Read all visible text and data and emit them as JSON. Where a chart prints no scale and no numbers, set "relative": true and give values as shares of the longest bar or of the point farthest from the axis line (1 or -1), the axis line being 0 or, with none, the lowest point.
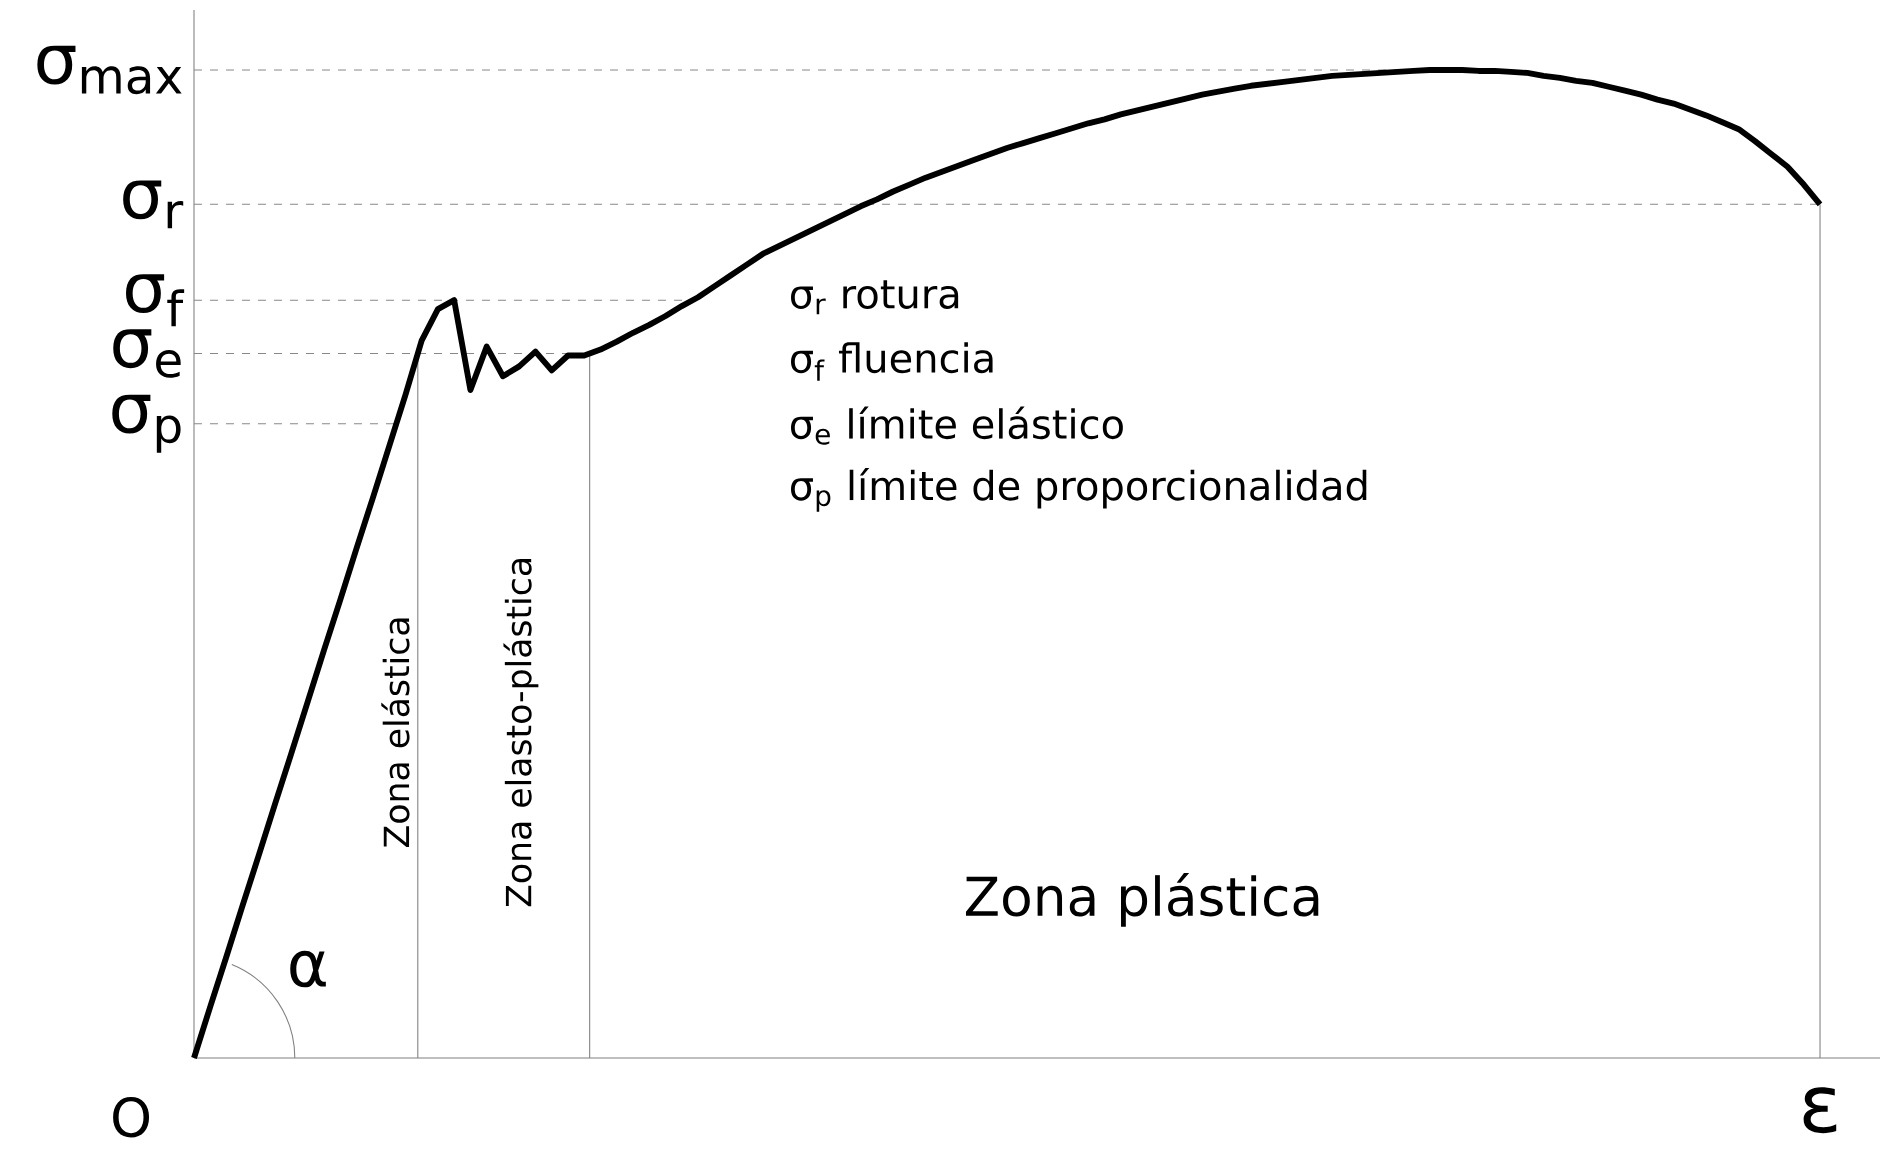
{
  "chart_data": {
    "type": "line",
    "relative": true,
    "xlabel": "ε",
    "color": "#000000",
    "line_style": "solid",
    "marker": "none",
    "categories": [
      null,
      null,
      null,
      null,
      null,
      null,
      null,
      null,
      null,
      null,
      null,
      null,
      null,
      null,
      null,
      null,
      null,
      null,
      null,
      null,
      null,
      null,
      null,
      null,
      null,
      null,
      null,
      null,
      null,
      null,
      null,
      null,
      null,
      null,
      null,
      null,
      null,
      null,
      null,
      null,
      null,
      null,
      null,
      null,
      null,
      null,
      null,
      null,
      null,
      null,
      null,
      null,
      null,
      null,
      null,
      null,
      null,
      null,
      null,
      null,
      null,
      null,
      null,
      null,
      null,
      null,
      null,
      null,
      null,
      null,
      null,
      null,
      null,
      null,
      null,
      null,
      null,
      null,
      null,
      null,
      null,
      null,
      null,
      null,
      null,
      null,
      null,
      null,
      null,
      null,
      null,
      null,
      null,
      null,
      null,
      null,
      null,
      null,
      null,
      null,
      null
    ],
    "values": [
      0,
      0.052,
      0.103,
      0.155,
      0.206,
      0.258,
      0.309,
      0.361,
      0.413,
      0.464,
      0.516,
      0.567,
      0.619,
      0.671,
      0.726,
      0.758,
      0.767,
      0.676,
      0.72,
      0.69,
      0.7,
      0.715,
      0.696,
      0.711,
      0.711,
      0.717,
      0.725,
      0.734,
      0.742,
      0.751,
      0.761,
      0.77,
      0.781,
      0.792,
      0.803,
      0.814,
      0.822,
      0.83,
      0.838,
      0.846,
      0.854,
      0.862,
      0.869,
      0.877,
      0.884,
      0.891,
      0.897,
      0.903,
      0.909,
      0.915,
      0.921,
      0.926,
      0.931,
      0.936,
      0.941,
      0.946,
      0.95,
      0.955,
      0.959,
      0.963,
      0.967,
      0.971,
      0.975,
      0.978,
      0.981,
      0.984,
      0.986,
      0.988,
      0.99,
      0.992,
      0.994,
      0.995,
      0.996,
      0.997,
      0.998,
      0.999,
      1,
      1,
      1,
      0.999,
      0.999,
      0.998,
      0.997,
      0.994,
      0.992,
      0.989,
      0.987,
      0.983,
      0.979,
      0.975,
      0.97,
      0.966,
      0.96,
      0.954,
      0.947,
      0.94,
      0.928,
      0.915,
      0.902,
      0.884,
      0.864
    ],
    "ref_lines": [
      {
        "axis": "y",
        "value": 1,
        "label": "σ$_{max}$",
        "color": "#888888",
        "line_style": "dashed"
      },
      {
        "axis": "y",
        "value": 0.864,
        "label": "σ$_{r}$",
        "color": "#888888",
        "line_style": "dashed"
      },
      {
        "axis": "y",
        "value": 0.767,
        "label": "σ$_{f}$",
        "color": "#888888",
        "line_style": "dashed"
      },
      {
        "axis": "y",
        "value": 0.713,
        "label": "σ$_{e}$",
        "color": "#888888",
        "line_style": "dashed"
      },
      {
        "axis": "y",
        "value": 0.642,
        "label": "σ$_{p}$",
        "color": "#888888",
        "line_style": "dashed"
      }
    ],
    "annotations": [
      "σ$_{r}$   rotura",
      "σ$_{f}$   fluencia",
      "σ$_{e}$   límite elástico",
      "σ$_{p}$   límite de proporcionalidad",
      "α",
      "O",
      "Zona elástica",
      "Zona elasto-plástica",
      "Zona plástica"
    ]
  }
}
